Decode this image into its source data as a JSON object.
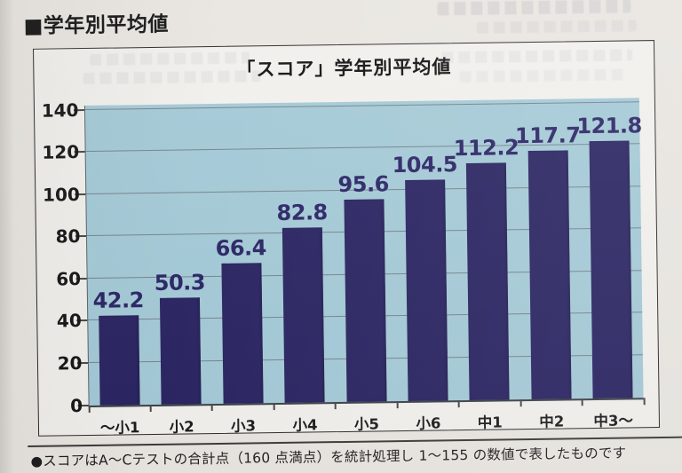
{
  "page": {
    "header": "■学年別平均値",
    "footnote": "●スコアはA～Cテストの合計点（160 点満点）を統計処理し 1～155 の数値で表したものです"
  },
  "chart_data": {
    "type": "bar",
    "title": "「スコア」学年別平均値",
    "categories": [
      "～小1",
      "小2",
      "小3",
      "小4",
      "小5",
      "小6",
      "中1",
      "中2",
      "中3～"
    ],
    "values": [
      42.2,
      50.3,
      66.4,
      82.8,
      95.6,
      104.5,
      112.2,
      117.7,
      121.8
    ],
    "xlabel": "",
    "ylabel": "",
    "ylim": [
      0,
      140
    ],
    "ytick_interval": 20,
    "grid": true,
    "legend": "none",
    "colors": {
      "bar": "#2a2462",
      "plot_background": "#a4cad7",
      "grid_line": "#6e7880",
      "value_label": "#2b2566",
      "axis_text": "#161616"
    }
  }
}
